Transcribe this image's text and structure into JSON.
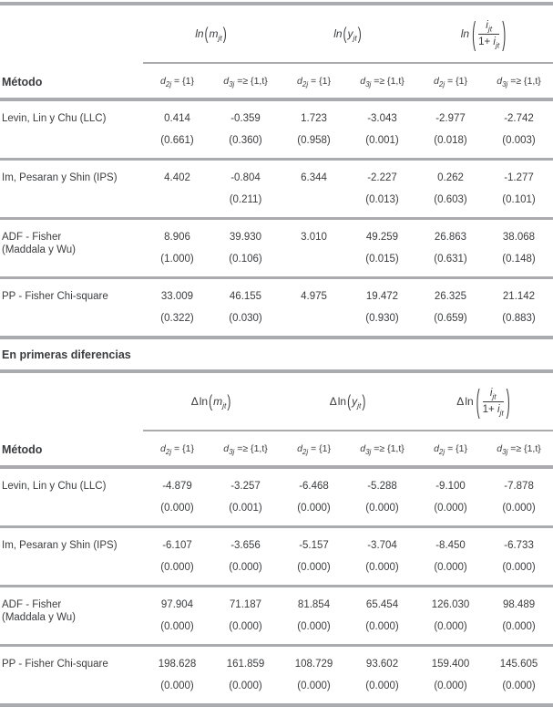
{
  "page": {
    "background": "#ffffff",
    "rule_color": "#a9abae",
    "text_color": "#3b3c3e"
  },
  "section_label": "En primeras diferencias",
  "tables": [
    {
      "id": "levels",
      "method_header": "Método",
      "groups": [
        {
          "prefix": "",
          "fn": "ln",
          "fn_italic": true,
          "fraction": false,
          "var": "m",
          "var_sub": "jt"
        },
        {
          "prefix": "",
          "fn": "ln",
          "fn_italic": true,
          "fraction": false,
          "var": "y",
          "var_sub": "jt"
        },
        {
          "prefix": "",
          "fn": "ln",
          "fn_italic": true,
          "fraction": true,
          "num_var": "i",
          "num_sub": "jt",
          "den_pre": "1+",
          "den_var": "i",
          "den_sub": "jt"
        }
      ],
      "subheaders": [
        {
          "base": "d",
          "sub": "2j",
          "rel": "=",
          "set": "{1}"
        },
        {
          "base": "d",
          "sub": "3j",
          "rel": "=≥",
          "set": "{1,t}"
        },
        {
          "base": "d",
          "sub": "2j",
          "rel": "=",
          "set": "{1}"
        },
        {
          "base": "d",
          "sub": "3j",
          "rel": "=≥",
          "set": "{1,t}"
        },
        {
          "base": "d",
          "sub": "2j",
          "rel": "=",
          "set": "{1}"
        },
        {
          "base": "d",
          "sub": "3j",
          "rel": "=≥",
          "set": "{1,t}"
        }
      ],
      "rows": [
        {
          "method": [
            "Levin, Lin y Chu (LLC)"
          ],
          "stats": [
            "0.414",
            "-0.359",
            "1.723",
            "-3.043",
            "-2.977",
            "-2.742"
          ],
          "pvals": [
            "(0.661)",
            "(0.360)",
            "(0.958)",
            "(0.001)",
            "(0.018)",
            "(0.003)"
          ]
        },
        {
          "method": [
            "Im, Pesaran y Shin (IPS)"
          ],
          "stats": [
            "4.402",
            "-0.804",
            "6.344",
            "-2.227",
            "0.262",
            "-1.277"
          ],
          "pvals": [
            "",
            "(0.211)",
            "",
            "(0.013)",
            "(0.603)",
            "(0.101)"
          ]
        },
        {
          "method": [
            "ADF - Fisher",
            "(Maddala y Wu)"
          ],
          "stats": [
            "8.906",
            "39.930",
            "3.010",
            "49.259",
            "26.863",
            "38.068"
          ],
          "pvals": [
            "(1.000)",
            "(0.106)",
            "",
            "(0.015)",
            "(0.631)",
            "(0.148)"
          ]
        },
        {
          "method": [
            "PP - Fisher Chi-square"
          ],
          "stats": [
            "33.009",
            "46.155",
            "4.975",
            "19.472",
            "26.325",
            "21.142"
          ],
          "pvals": [
            "(0.322)",
            "(0.030)",
            "",
            "(0.930)",
            "(0.659)",
            "(0.883)"
          ]
        }
      ]
    },
    {
      "id": "differences",
      "method_header": "Método",
      "groups": [
        {
          "prefix": "Δ",
          "fn": "ln",
          "fn_italic": false,
          "fraction": false,
          "var": "m",
          "var_sub": "jt"
        },
        {
          "prefix": "Δ",
          "fn": "ln",
          "fn_italic": false,
          "fraction": false,
          "var": "y",
          "var_sub": "jt"
        },
        {
          "prefix": "Δ",
          "fn": "ln",
          "fn_italic": false,
          "fraction": true,
          "num_var": "i",
          "num_sub": "jt",
          "den_pre": "1+",
          "den_var": "i",
          "den_sub": "jt"
        }
      ],
      "subheaders": [
        {
          "base": "d",
          "sub": "2j",
          "rel": "=",
          "set": "{1}"
        },
        {
          "base": "d",
          "sub": "3j",
          "rel": "=≥",
          "set": "{1,t}"
        },
        {
          "base": "d",
          "sub": "2j",
          "rel": "=",
          "set": "{1}"
        },
        {
          "base": "d",
          "sub": "3j",
          "rel": "=≥",
          "set": "{1,t}"
        },
        {
          "base": "d",
          "sub": "2j",
          "rel": "=",
          "set": "{1}"
        },
        {
          "base": "d",
          "sub": "3j",
          "rel": "=≥",
          "set": "{1,t}"
        }
      ],
      "rows": [
        {
          "method": [
            "Levin, Lin y Chu (LLC)"
          ],
          "stats": [
            "-4.879",
            "-3.257",
            "-6.468",
            "-5.288",
            "-9.100",
            "-7.878"
          ],
          "pvals": [
            "(0.000)",
            "(0.001)",
            "(0.000)",
            "(0.000)",
            "(0.000)",
            "(0.000)"
          ]
        },
        {
          "method": [
            "Im, Pesaran y Shin (IPS)"
          ],
          "stats": [
            "-6.107",
            "-3.656",
            "-5.157",
            "-3.704",
            "-8.450",
            "-6.733"
          ],
          "pvals": [
            "(0.000)",
            "(0.000)",
            "(0.000)",
            "(0.000)",
            "(0.000)",
            "(0.000)"
          ]
        },
        {
          "method": [
            "ADF - Fisher",
            "(Maddala y Wu)"
          ],
          "stats": [
            "97.904",
            "71.187",
            "81.854",
            "65.454",
            "126.030",
            "98.489"
          ],
          "pvals": [
            "(0.000)",
            "(0.000)",
            "(0.000)",
            "(0.000)",
            "(0.000)",
            "(0.000)"
          ]
        },
        {
          "method": [
            "PP - Fisher Chi-square"
          ],
          "stats": [
            "198.628",
            "161.859",
            "108.729",
            "93.602",
            "159.400",
            "145.605"
          ],
          "pvals": [
            "(0.000)",
            "(0.000)",
            "(0.000)",
            "(0.000)",
            "(0.000)",
            "(0.000)"
          ]
        }
      ]
    }
  ]
}
